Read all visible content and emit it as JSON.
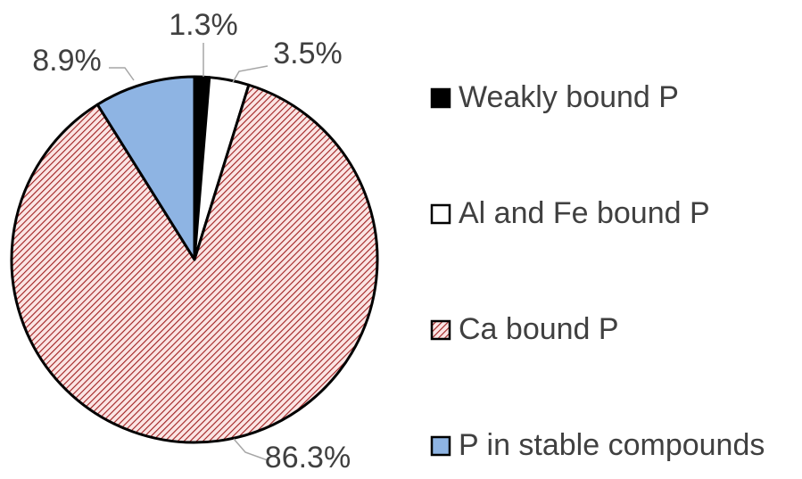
{
  "chart_data": {
    "type": "pie",
    "categories": [
      "Weakly bound P",
      "Al and Fe bound P",
      "Ca bound P",
      "P in stable compounds"
    ],
    "values": [
      1.3,
      3.5,
      86.3,
      8.9
    ],
    "value_labels": [
      "1.3%",
      "3.5%",
      "86.3%",
      "8.9%"
    ],
    "colors": [
      "#000000",
      "#ffffff",
      "#c0504d",
      "#8eb4e3"
    ],
    "legend": "right"
  }
}
